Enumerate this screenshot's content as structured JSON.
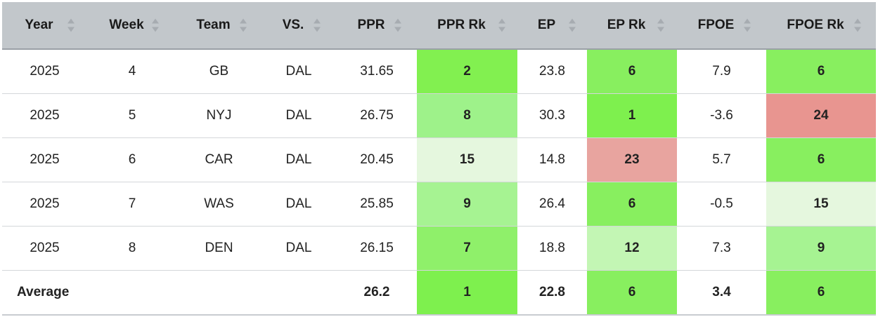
{
  "table": {
    "columns": [
      {
        "label": "Year",
        "name": "year"
      },
      {
        "label": "Week",
        "name": "week"
      },
      {
        "label": "Team",
        "name": "team"
      },
      {
        "label": "VS.",
        "name": "vs"
      },
      {
        "label": "PPR",
        "name": "ppr"
      },
      {
        "label": "PPR Rk",
        "name": "ppr-rk"
      },
      {
        "label": "EP",
        "name": "ep"
      },
      {
        "label": "EP Rk",
        "name": "ep-rk"
      },
      {
        "label": "FPOE",
        "name": "fpoe"
      },
      {
        "label": "FPOE Rk",
        "name": "fpoe-rk"
      }
    ],
    "rows": [
      {
        "year": "2025",
        "week": "4",
        "team": "GB",
        "vs": "DAL",
        "ppr": "31.65",
        "ppr_rk": "2",
        "ep": "23.8",
        "ep_rk": "6",
        "fpoe": "7.9",
        "fpoe_rk": "6"
      },
      {
        "year": "2025",
        "week": "5",
        "team": "NYJ",
        "vs": "DAL",
        "ppr": "26.75",
        "ppr_rk": "8",
        "ep": "30.3",
        "ep_rk": "1",
        "fpoe": "-3.6",
        "fpoe_rk": "24"
      },
      {
        "year": "2025",
        "week": "6",
        "team": "CAR",
        "vs": "DAL",
        "ppr": "20.45",
        "ppr_rk": "15",
        "ep": "14.8",
        "ep_rk": "23",
        "fpoe": "5.7",
        "fpoe_rk": "6"
      },
      {
        "year": "2025",
        "week": "7",
        "team": "WAS",
        "vs": "DAL",
        "ppr": "25.85",
        "ppr_rk": "9",
        "ep": "26.4",
        "ep_rk": "6",
        "fpoe": "-0.5",
        "fpoe_rk": "15"
      },
      {
        "year": "2025",
        "week": "8",
        "team": "DEN",
        "vs": "DAL",
        "ppr": "26.15",
        "ppr_rk": "7",
        "ep": "18.8",
        "ep_rk": "12",
        "fpoe": "7.3",
        "fpoe_rk": "9"
      }
    ],
    "average": {
      "label": "Average",
      "ppr": "26.2",
      "ppr_rk": "1",
      "ep": "22.8",
      "ep_rk": "6",
      "fpoe": "3.4",
      "fpoe_rk": "6"
    },
    "rank_colors": {
      "rank_1": "#7ef04e",
      "rank_2": "#82f050",
      "rank_6": "#88ef5f",
      "rank_7": "#8ff06a",
      "rank_8": "#9ef28a",
      "rank_9": "#a6f392",
      "rank_12": "#c3f6b4",
      "rank_15": "#e5f7de",
      "rank_23": "#e8a49f",
      "rank_24": "#e89590"
    },
    "header_color": "#c2c7cb"
  }
}
